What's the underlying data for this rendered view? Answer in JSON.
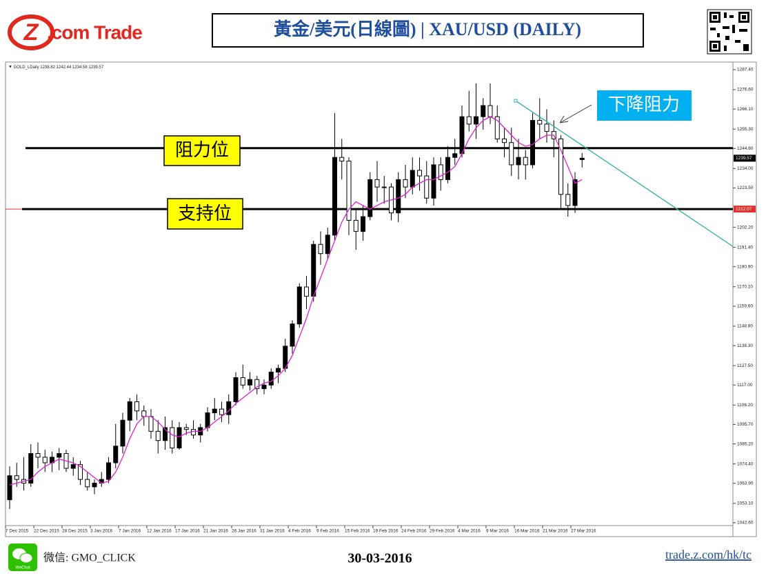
{
  "header": {
    "logo_mark": "Z",
    "logo_text": ".com Trade",
    "title": "黃金/美元(日線圖) | XAU/USD  (DAILY)"
  },
  "chart_data": {
    "type": "candlestick",
    "symbol": "GOLD_LDaily",
    "categories": [
      "7 Dec 2015",
      null,
      null,
      null,
      "22 Dec 2015",
      null,
      null,
      null,
      "28 Dec 2015",
      null,
      null,
      null,
      "3 Jan 2016",
      null,
      null,
      null,
      "7 Jan 2016",
      null,
      null,
      null,
      "12 Jan 2016",
      null,
      null,
      null,
      "17 Jan 2016",
      null,
      null,
      null,
      "21 Jan 2016",
      null,
      null,
      null,
      "26 Jan 2016",
      null,
      null,
      null,
      "31 Jan 2016",
      null,
      null,
      null,
      "4 Feb 2016",
      null,
      null,
      null,
      "9 Feb 2016",
      null,
      null,
      null,
      "15 Feb 2016",
      null,
      null,
      null,
      "19 Feb 2016",
      null,
      null,
      null,
      "24 Feb 2016",
      null,
      null,
      null,
      "29 Feb 2016",
      null,
      null,
      null,
      "4 Mar 2016",
      null,
      null,
      null,
      "9 Mar 2016",
      null,
      null,
      null,
      "16 Mar 2016",
      null,
      null,
      null,
      "21 Mar 2016",
      null,
      null,
      null,
      "27 Mar 2016",
      null
    ],
    "open": [
      1055,
      1068,
      1066,
      1064,
      1080,
      1078,
      1075,
      1078,
      1080,
      1072,
      1074,
      1066,
      1062,
      1064,
      1066,
      1075,
      1084,
      1098,
      1108,
      1103,
      1100,
      1092,
      1087,
      1094,
      1083,
      1094,
      1093,
      1090,
      1094,
      1102,
      1104,
      1101,
      1108,
      1121,
      1117,
      1120,
      1115,
      1117,
      1124,
      1126,
      1138,
      1150,
      1170,
      1165,
      1193,
      1188,
      1198,
      1240,
      1238,
      1206,
      1200,
      1208,
      1228,
      1224,
      1224,
      1210,
      1228,
      1224,
      1233,
      1230,
      1218,
      1236,
      1228,
      1240,
      1242,
      1262,
      1258,
      1262,
      1268,
      1262,
      1250,
      1248,
      1236,
      1240,
      1236,
      1260,
      1258,
      1254,
      1250,
      1220,
      1214,
      1238.82
    ],
    "high": [
      1073,
      1075,
      1078,
      1085,
      1086,
      1082,
      1081,
      1083,
      1082,
      1078,
      1076,
      1070,
      1066,
      1070,
      1078,
      1096,
      1102,
      1110,
      1112,
      1106,
      1104,
      1098,
      1100,
      1098,
      1097,
      1096,
      1098,
      1096,
      1105,
      1110,
      1108,
      1112,
      1124,
      1128,
      1124,
      1122,
      1120,
      1126,
      1128,
      1142,
      1152,
      1172,
      1176,
      1195,
      1200,
      1202,
      1264,
      1250,
      1240,
      1212,
      1214,
      1232,
      1238,
      1230,
      1226,
      1232,
      1236,
      1240,
      1240,
      1238,
      1240,
      1240,
      1246,
      1250,
      1268,
      1276,
      1280,
      1272,
      1280,
      1268,
      1256,
      1256,
      1250,
      1244,
      1264,
      1272,
      1266,
      1260,
      1252,
      1226,
      1232,
      1242.44
    ],
    "low": [
      1050,
      1062,
      1060,
      1062,
      1072,
      1070,
      1070,
      1071,
      1070,
      1068,
      1063,
      1060,
      1058,
      1062,
      1064,
      1072,
      1080,
      1092,
      1098,
      1095,
      1088,
      1080,
      1082,
      1080,
      1082,
      1090,
      1088,
      1086,
      1092,
      1098,
      1097,
      1096,
      1106,
      1115,
      1114,
      1112,
      1112,
      1115,
      1118,
      1124,
      1134,
      1148,
      1158,
      1162,
      1182,
      1185,
      1195,
      1228,
      1198,
      1190,
      1195,
      1206,
      1216,
      1215,
      1206,
      1205,
      1218,
      1220,
      1222,
      1215,
      1214,
      1222,
      1226,
      1236,
      1240,
      1254,
      1250,
      1255,
      1258,
      1248,
      1240,
      1230,
      1228,
      1228,
      1234,
      1250,
      1248,
      1240,
      1212,
      1208,
      1210,
      1234.58
    ],
    "close": [
      1068,
      1066,
      1064,
      1080,
      1078,
      1075,
      1078,
      1080,
      1072,
      1074,
      1066,
      1062,
      1064,
      1066,
      1075,
      1084,
      1098,
      1108,
      1103,
      1100,
      1092,
      1087,
      1094,
      1083,
      1094,
      1093,
      1090,
      1094,
      1102,
      1104,
      1101,
      1108,
      1121,
      1117,
      1120,
      1115,
      1117,
      1124,
      1126,
      1138,
      1150,
      1170,
      1165,
      1193,
      1188,
      1198,
      1240,
      1238,
      1206,
      1200,
      1208,
      1228,
      1224,
      1224,
      1210,
      1228,
      1224,
      1233,
      1230,
      1218,
      1236,
      1228,
      1240,
      1242,
      1262,
      1258,
      1262,
      1268,
      1262,
      1250,
      1248,
      1236,
      1240,
      1236,
      1260,
      1258,
      1254,
      1250,
      1220,
      1214,
      1228,
      1239.57
    ],
    "up_color": "#000000",
    "down_color": "#ffffff",
    "moving_average": {
      "color": "#e020d0",
      "values": [
        1063,
        1064,
        1065,
        1066,
        1070,
        1073,
        1075,
        1077,
        1076,
        1075,
        1073,
        1070,
        1067,
        1064,
        1065,
        1070,
        1078,
        1088,
        1096,
        1100,
        1100,
        1097,
        1093,
        1090,
        1089,
        1091,
        1092,
        1092,
        1094,
        1097,
        1100,
        1103,
        1107,
        1110,
        1113,
        1116,
        1118,
        1119,
        1122,
        1126,
        1133,
        1143,
        1153,
        1165,
        1175,
        1185,
        1195,
        1205,
        1212,
        1216,
        1214,
        1212,
        1214,
        1216,
        1217,
        1218,
        1220,
        1224,
        1226,
        1228,
        1228,
        1230,
        1232,
        1235,
        1242,
        1250,
        1256,
        1260,
        1262,
        1260,
        1256,
        1252,
        1248,
        1246,
        1247,
        1250,
        1252,
        1252,
        1244,
        1235,
        1226,
        1228
      ]
    },
    "resistance": {
      "label": "阻力位",
      "value": 1245
    },
    "support": {
      "label": "支持位",
      "value": 1212.07
    },
    "trendline": {
      "label": "下降阻力",
      "color": "#2ab0a8",
      "x": [
        71.6,
        102.3
      ],
      "values": [
        1270.6,
        1192
      ]
    },
    "ylim": [
      1035.1,
      1291.5
    ],
    "yticks": [
      {
        "value": 1287.4,
        "label": "1287.40"
      },
      {
        "value": 1276.6,
        "label": "1276.60"
      },
      {
        "value": 1266.1,
        "label": "1266.10"
      },
      {
        "value": 1255.3,
        "label": "1255.30"
      },
      {
        "value": 1244.8,
        "label": "1244.80"
      },
      {
        "value": 1234,
        "label": "1234.00"
      },
      {
        "value": 1223.5,
        "label": "1223.50"
      },
      {
        "value": 1202.2,
        "label": "1202.20"
      },
      {
        "value": 1191.4,
        "label": "1191.40"
      },
      {
        "value": 1180.9,
        "label": "1180.90"
      },
      {
        "value": 1170.1,
        "label": "1170.10"
      },
      {
        "value": 1159.6,
        "label": "1159.60"
      },
      {
        "value": 1148.8,
        "label": "1148.80"
      },
      {
        "value": 1138.3,
        "label": "1138.30"
      },
      {
        "value": 1127.5,
        "label": "1127.50"
      },
      {
        "value": 1117,
        "label": "1117.00"
      },
      {
        "value": 1106.2,
        "label": "1106.20"
      },
      {
        "value": 1095.7,
        "label": "1095.70"
      },
      {
        "value": 1085.2,
        "label": "1085.20"
      },
      {
        "value": 1074.4,
        "label": "1074.40"
      },
      {
        "value": 1063.9,
        "label": "1063.90"
      },
      {
        "value": 1053.1,
        "label": "1053.10"
      },
      {
        "value": 1042.6,
        "label": "1042.60"
      }
    ]
  },
  "footer": {
    "wechat_icon": "WeChat",
    "wechat": "微信: GMO_CLICK",
    "date": "30-03-2016",
    "link": "trade.z.com/hk/tc"
  }
}
